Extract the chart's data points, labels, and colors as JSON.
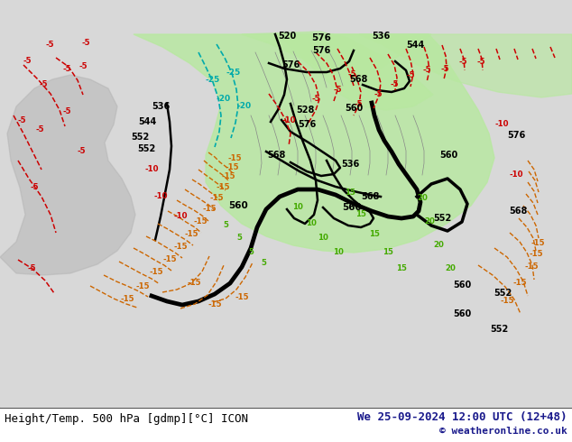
{
  "title_left": "Height/Temp. 500 hPa [gdmp][°C] ICON",
  "title_right": "We 25-09-2024 12:00 UTC (12+48)",
  "copyright": "© weatheronline.co.uk",
  "background_color": "#e8e8e8",
  "land_color": "#c8c8c8",
  "green_fill_color": "#b8e8a0",
  "fig_width": 6.34,
  "fig_height": 4.9,
  "dpi": 100,
  "bottom_text_color": "#1a1a8c",
  "title_fontsize": 9,
  "copyright_fontsize": 8,
  "geopotential_color": "#000000",
  "temp_neg_color": "#cc0000",
  "temp_pos_color": "#cc6600",
  "cyan_color": "#00aaaa"
}
